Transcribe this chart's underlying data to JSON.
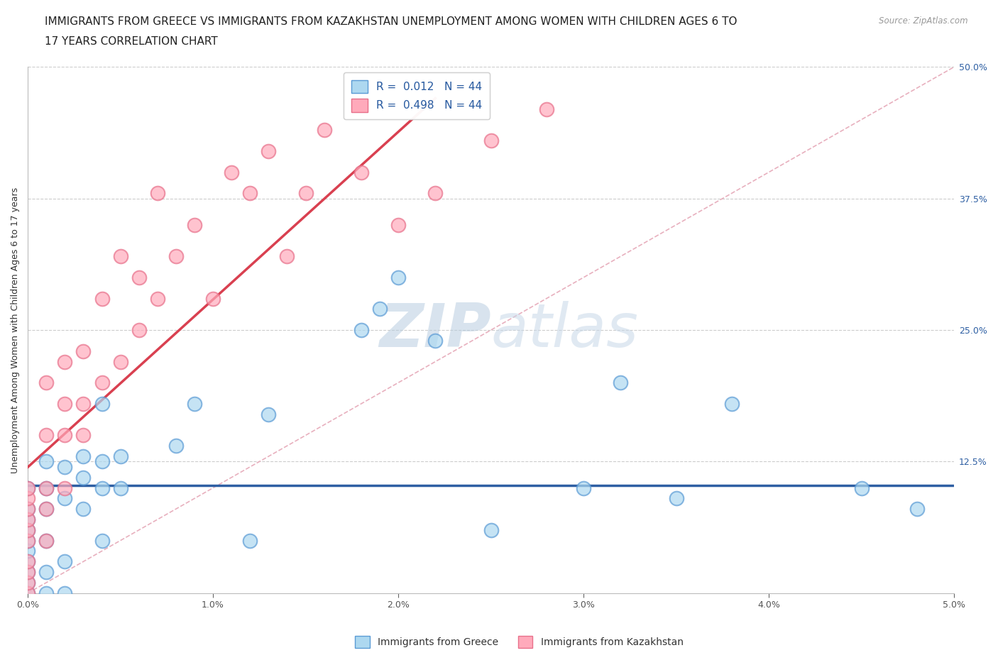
{
  "title_line1": "IMMIGRANTS FROM GREECE VS IMMIGRANTS FROM KAZAKHSTAN UNEMPLOYMENT AMONG WOMEN WITH CHILDREN AGES 6 TO",
  "title_line2": "17 YEARS CORRELATION CHART",
  "source": "Source: ZipAtlas.com",
  "ylabel": "Unemployment Among Women with Children Ages 6 to 17 years",
  "xlim": [
    0.0,
    0.05
  ],
  "ylim": [
    0.0,
    0.5
  ],
  "xtick_vals": [
    0.0,
    0.01,
    0.02,
    0.03,
    0.04,
    0.05
  ],
  "xtick_labels": [
    "0.0%",
    "1.0%",
    "2.0%",
    "3.0%",
    "4.0%",
    "5.0%"
  ],
  "yticks_right": [
    0.125,
    0.25,
    0.375,
    0.5
  ],
  "ytick_right_labels": [
    "12.5%",
    "25.0%",
    "37.5%",
    "50.0%"
  ],
  "greece_color": "#ADD8F0",
  "greece_edge": "#5B9BD5",
  "kazakhstan_color": "#FFAABB",
  "kazakhstan_edge": "#E8708A",
  "R_greece": 0.012,
  "N_greece": 44,
  "R_kazakhstan": 0.498,
  "N_kazakhstan": 44,
  "trend_greece_color": "#2E5FA3",
  "trend_kazakhstan_color": "#D94050",
  "diagonal_color": "#E8B0BE",
  "watermark_zip": "ZIP",
  "watermark_atlas": "atlas",
  "background_color": "#FFFFFF",
  "grid_color": "#CCCCCC",
  "title_fontsize": 11,
  "axis_label_fontsize": 9,
  "tick_fontsize": 9,
  "legend_fontsize": 11,
  "greece_x": [
    0.0,
    0.0,
    0.0,
    0.0,
    0.0,
    0.0,
    0.0,
    0.0,
    0.0,
    0.0,
    0.001,
    0.001,
    0.001,
    0.001,
    0.001,
    0.001,
    0.002,
    0.002,
    0.002,
    0.002,
    0.003,
    0.003,
    0.003,
    0.004,
    0.004,
    0.004,
    0.004,
    0.005,
    0.005,
    0.008,
    0.009,
    0.012,
    0.013,
    0.018,
    0.019,
    0.02,
    0.022,
    0.025,
    0.03,
    0.032,
    0.035,
    0.038,
    0.045,
    0.048
  ],
  "greece_y": [
    0.0,
    0.01,
    0.02,
    0.03,
    0.04,
    0.05,
    0.06,
    0.07,
    0.08,
    0.1,
    0.0,
    0.02,
    0.05,
    0.08,
    0.1,
    0.125,
    0.0,
    0.03,
    0.09,
    0.12,
    0.08,
    0.11,
    0.13,
    0.05,
    0.1,
    0.125,
    0.18,
    0.1,
    0.13,
    0.14,
    0.18,
    0.05,
    0.17,
    0.25,
    0.27,
    0.3,
    0.24,
    0.06,
    0.1,
    0.2,
    0.09,
    0.18,
    0.1,
    0.08
  ],
  "kazakhstan_x": [
    0.0,
    0.0,
    0.0,
    0.0,
    0.0,
    0.0,
    0.0,
    0.0,
    0.0,
    0.0,
    0.001,
    0.001,
    0.001,
    0.001,
    0.001,
    0.002,
    0.002,
    0.002,
    0.002,
    0.003,
    0.003,
    0.003,
    0.004,
    0.004,
    0.005,
    0.005,
    0.006,
    0.006,
    0.007,
    0.007,
    0.008,
    0.009,
    0.01,
    0.011,
    0.012,
    0.013,
    0.014,
    0.015,
    0.016,
    0.018,
    0.02,
    0.022,
    0.025,
    0.028
  ],
  "kazakhstan_y": [
    0.0,
    0.01,
    0.02,
    0.03,
    0.05,
    0.06,
    0.07,
    0.08,
    0.09,
    0.1,
    0.05,
    0.08,
    0.1,
    0.15,
    0.2,
    0.1,
    0.15,
    0.18,
    0.22,
    0.15,
    0.18,
    0.23,
    0.2,
    0.28,
    0.22,
    0.32,
    0.25,
    0.3,
    0.28,
    0.38,
    0.32,
    0.35,
    0.28,
    0.4,
    0.38,
    0.42,
    0.32,
    0.38,
    0.44,
    0.4,
    0.35,
    0.38,
    0.43,
    0.46
  ]
}
